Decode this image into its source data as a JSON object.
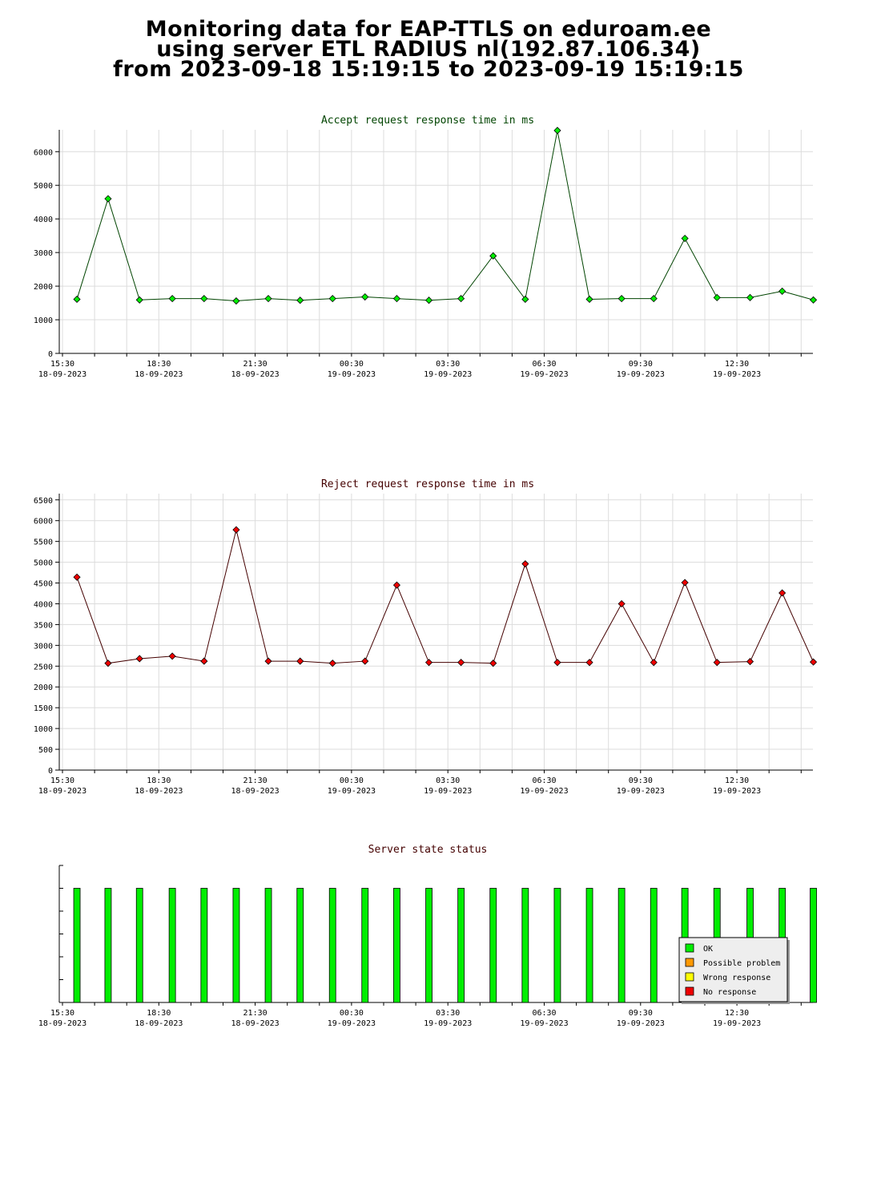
{
  "page_title": {
    "line1": "Monitoring data for EAP-TTLS on eduroam.ee",
    "line2": "using server ETL RADIUS nl(192.87.106.34)",
    "line3": "from 2023-09-18 15:19:15 to 2023-09-19 15:19:15"
  },
  "chart_data": [
    {
      "type": "line",
      "title": "Accept request response time in ms",
      "title_color": "#004400",
      "line_color": "#004400",
      "marker_color": "#00ee00",
      "xlabel": "",
      "ylabel": "",
      "ylim": [
        0,
        6650
      ],
      "yticks": [
        0,
        1000,
        2000,
        3000,
        4000,
        5000,
        6000
      ],
      "xlim": [
        0,
        23.5
      ],
      "xticks": [
        {
          "x": 0,
          "time": "15:30",
          "date": "18-09-2023"
        },
        {
          "x": 3,
          "time": "18:30",
          "date": "18-09-2023"
        },
        {
          "x": 6,
          "time": "21:30",
          "date": "18-09-2023"
        },
        {
          "x": 9,
          "time": "00:30",
          "date": "19-09-2023"
        },
        {
          "x": 12,
          "time": "03:30",
          "date": "19-09-2023"
        },
        {
          "x": 15,
          "time": "06:30",
          "date": "19-09-2023"
        },
        {
          "x": 18,
          "time": "09:30",
          "date": "19-09-2023"
        },
        {
          "x": 21,
          "time": "12:30",
          "date": "19-09-2023"
        }
      ],
      "grid": true,
      "x": [
        0.45,
        1.42,
        2.4,
        3.42,
        4.41,
        5.41,
        6.41,
        7.4,
        8.41,
        9.42,
        10.41,
        11.41,
        12.41,
        13.41,
        14.41,
        15.41,
        16.41,
        17.41,
        18.41,
        19.38,
        20.38,
        21.41,
        22.41,
        23.38
      ],
      "values": [
        1610,
        4600,
        1590,
        1630,
        1630,
        1560,
        1630,
        1580,
        1630,
        1680,
        1630,
        1580,
        1630,
        2900,
        1610,
        6630,
        1610,
        1630,
        1630,
        3420,
        1660,
        1660,
        1850,
        1590
      ]
    },
    {
      "type": "line",
      "title": "Reject request response time in ms",
      "title_color": "#440000",
      "line_color": "#440000",
      "marker_color": "#ee0000",
      "xlabel": "",
      "ylabel": "",
      "ylim": [
        0,
        6650
      ],
      "yticks": [
        0,
        500,
        1000,
        1500,
        2000,
        2500,
        3000,
        3500,
        4000,
        4500,
        5000,
        5500,
        6000,
        6500
      ],
      "xlim": [
        0,
        23.5
      ],
      "xticks": [
        {
          "x": 0,
          "time": "15:30",
          "date": "18-09-2023"
        },
        {
          "x": 3,
          "time": "18:30",
          "date": "18-09-2023"
        },
        {
          "x": 6,
          "time": "21:30",
          "date": "18-09-2023"
        },
        {
          "x": 9,
          "time": "00:30",
          "date": "19-09-2023"
        },
        {
          "x": 12,
          "time": "03:30",
          "date": "19-09-2023"
        },
        {
          "x": 15,
          "time": "06:30",
          "date": "19-09-2023"
        },
        {
          "x": 18,
          "time": "09:30",
          "date": "19-09-2023"
        },
        {
          "x": 21,
          "time": "12:30",
          "date": "19-09-2023"
        }
      ],
      "grid": true,
      "x": [
        0.45,
        1.42,
        2.4,
        3.42,
        4.41,
        5.41,
        6.41,
        7.4,
        8.41,
        9.42,
        10.41,
        11.41,
        12.41,
        13.41,
        14.41,
        15.41,
        16.41,
        17.41,
        18.41,
        19.38,
        20.38,
        21.41,
        22.41,
        23.38
      ],
      "values": [
        4640,
        2570,
        2680,
        2740,
        2620,
        5780,
        2620,
        2620,
        2570,
        2620,
        4450,
        2590,
        2590,
        2570,
        4960,
        2590,
        2590,
        4000,
        2590,
        4510,
        2590,
        2610,
        4260,
        2600
      ]
    },
    {
      "type": "bar",
      "title": "Server state status",
      "title_color": "#440000",
      "bar_color": "#00ee00",
      "xlim": [
        0,
        23.5
      ],
      "ylim": [
        0,
        6
      ],
      "grid": false,
      "xticks": [
        {
          "x": 0,
          "time": "15:30",
          "date": "18-09-2023"
        },
        {
          "x": 3,
          "time": "18:30",
          "date": "18-09-2023"
        },
        {
          "x": 6,
          "time": "21:30",
          "date": "18-09-2023"
        },
        {
          "x": 9,
          "time": "00:30",
          "date": "19-09-2023"
        },
        {
          "x": 12,
          "time": "03:30",
          "date": "19-09-2023"
        },
        {
          "x": 15,
          "time": "06:30",
          "date": "19-09-2023"
        },
        {
          "x": 18,
          "time": "09:30",
          "date": "19-09-2023"
        },
        {
          "x": 21,
          "time": "12:30",
          "date": "19-09-2023"
        }
      ],
      "x": [
        0.45,
        1.42,
        2.4,
        3.42,
        4.41,
        5.41,
        6.41,
        7.4,
        8.41,
        9.42,
        10.41,
        11.41,
        12.41,
        13.41,
        14.41,
        15.41,
        16.41,
        17.41,
        18.41,
        19.38,
        20.38,
        21.41,
        22.41,
        23.38
      ],
      "values": [
        5,
        5,
        5,
        5,
        5,
        5,
        5,
        5,
        5,
        5,
        5,
        5,
        5,
        5,
        5,
        5,
        5,
        5,
        5,
        5,
        5,
        5,
        5,
        5
      ],
      "legend_position": "bottom-right",
      "legend": [
        {
          "label": "OK",
          "color": "#00ee00"
        },
        {
          "label": "Possible problem",
          "color": "#ff9900"
        },
        {
          "label": "Wrong response",
          "color": "#ffff00"
        },
        {
          "label": "No response",
          "color": "#ee0000"
        }
      ]
    }
  ]
}
